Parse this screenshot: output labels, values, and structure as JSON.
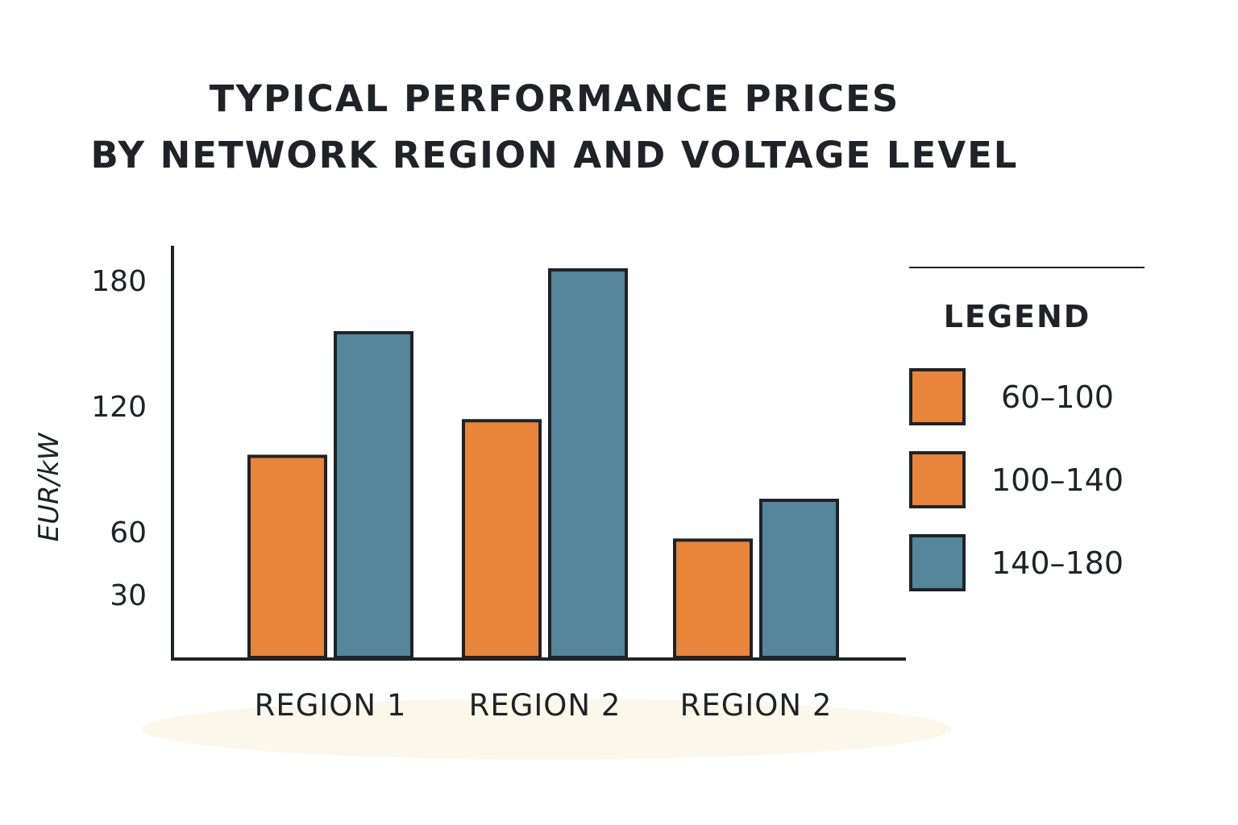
{
  "chart_data": {
    "type": "bar",
    "title_lines": [
      "TYPICAL PERFORMANCE PRICES",
      "BY NETWORK REGION AND VOLTAGE LEVEL"
    ],
    "ylabel": "EUR/kW",
    "xlabel": "",
    "yticks": [
      30,
      60,
      120,
      180
    ],
    "ylim": [
      0,
      200
    ],
    "grid": false,
    "categories": [
      "REGION 1",
      "REGION 2",
      "REGION 2"
    ],
    "series": [
      {
        "color": "#e8853a",
        "values": [
          96,
          113,
          56
        ]
      },
      {
        "color": "#55869b",
        "values": [
          155,
          185,
          75
        ]
      }
    ],
    "legend": {
      "title": "LEGEND",
      "placement": "right",
      "entries": [
        {
          "label": "60–100",
          "color": "#e8853a"
        },
        {
          "label": "100–140",
          "color": "#e8853a"
        },
        {
          "label": "140–180",
          "color": "#55869b"
        }
      ]
    }
  }
}
